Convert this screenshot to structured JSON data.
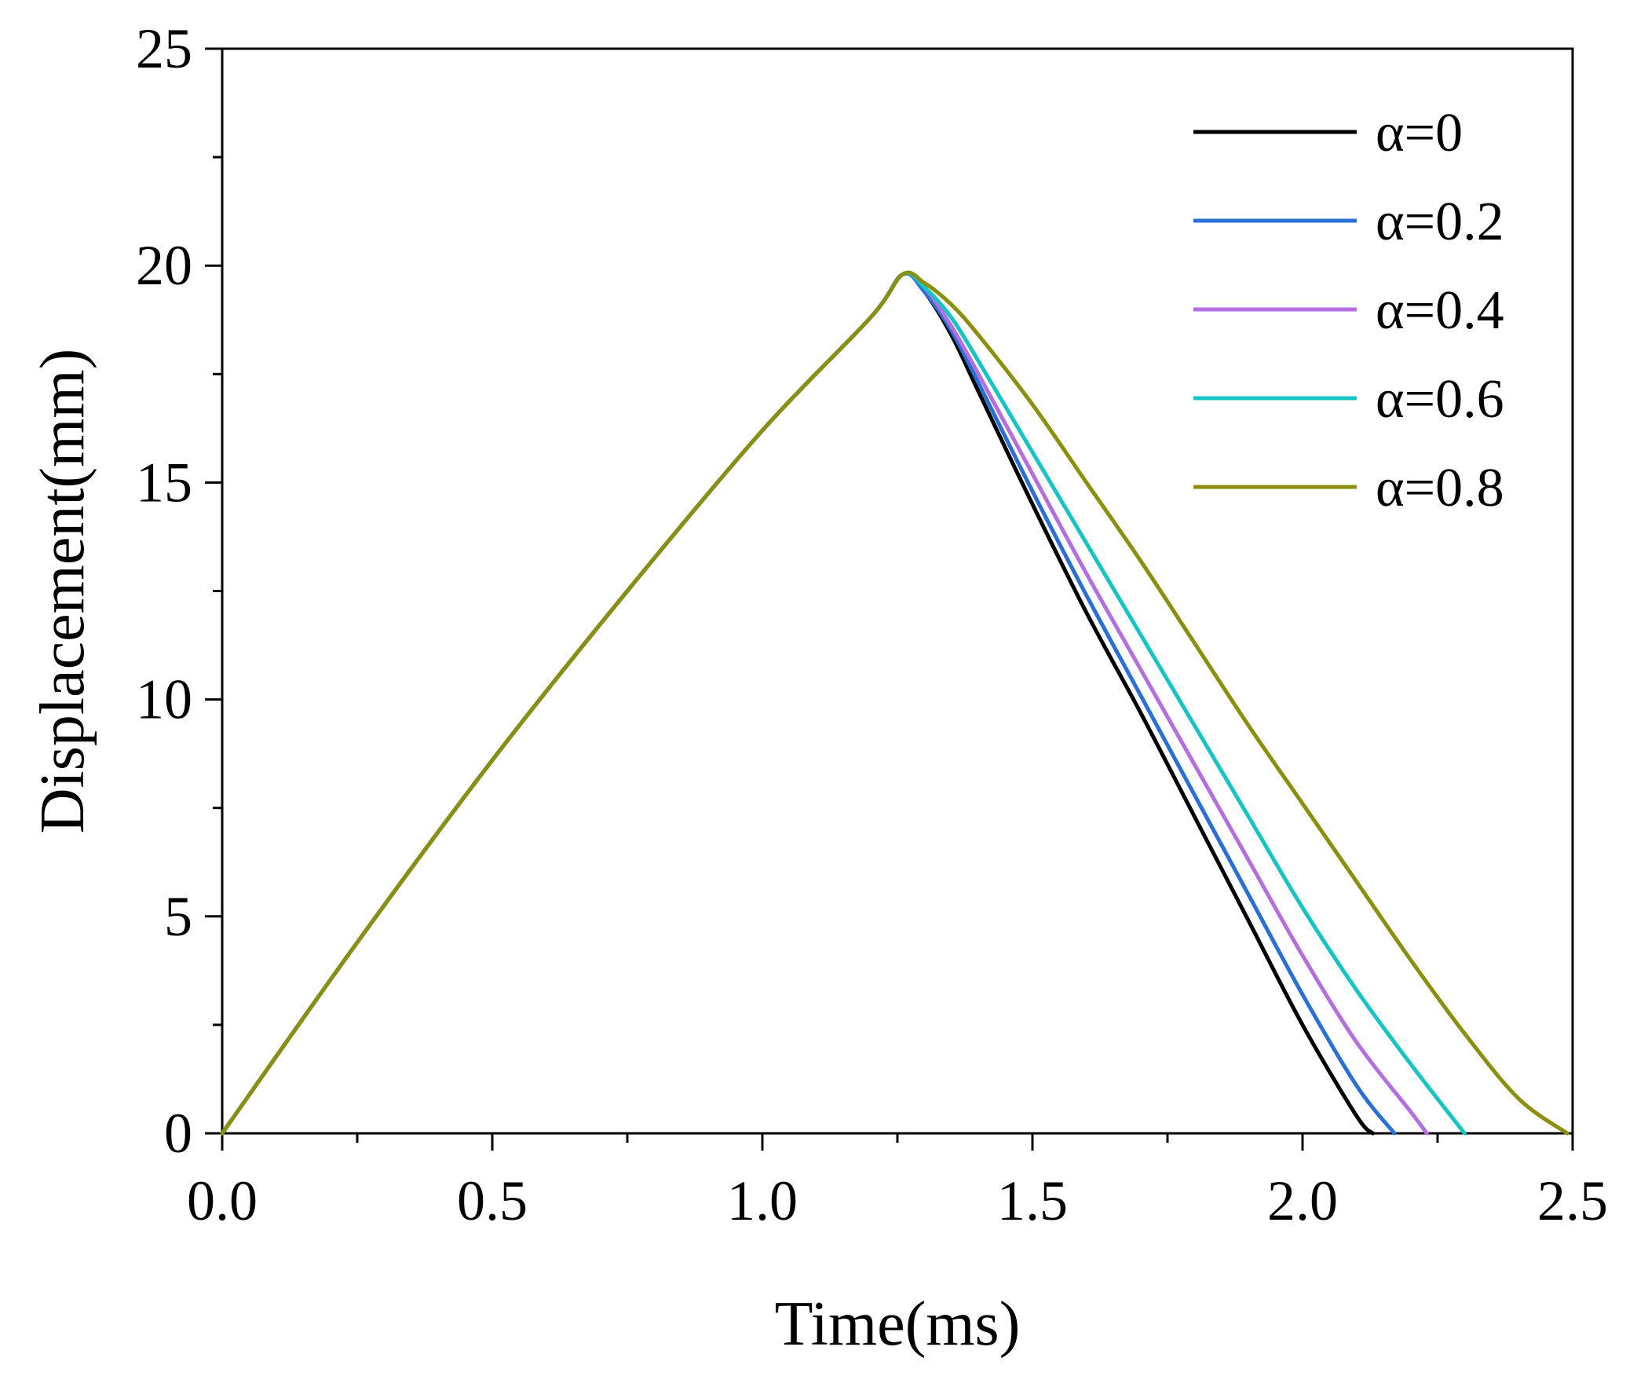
{
  "chart_data": {
    "type": "line",
    "title": "",
    "xlabel": "Time(ms)",
    "ylabel": "Displacement(mm)",
    "xlim": [
      0.0,
      2.5
    ],
    "ylim": [
      0,
      25
    ],
    "xticks": [
      "0.0",
      "0.5",
      "1.0",
      "1.5",
      "2.0",
      "2.5"
    ],
    "yticks": [
      "0",
      "5",
      "10",
      "15",
      "20",
      "25"
    ],
    "grid": false,
    "legend_position": "top-right",
    "series": [
      {
        "name": "α=0",
        "color": "#000000",
        "x": [
          0,
          0.25,
          0.5,
          0.75,
          1.0,
          1.2,
          1.26,
          1.3,
          1.35,
          1.4,
          1.5,
          1.6,
          1.7,
          1.8,
          1.9,
          2.0,
          2.1,
          2.13
        ],
        "y": [
          0,
          4.4,
          8.6,
          12.5,
          16.2,
          18.8,
          19.8,
          19.4,
          18.4,
          17.1,
          14.5,
          12.0,
          9.7,
          7.3,
          4.9,
          2.5,
          0.4,
          0
        ]
      },
      {
        "name": "α=0.2",
        "color": "#2a6fd6",
        "x": [
          0,
          0.25,
          0.5,
          0.75,
          1.0,
          1.2,
          1.26,
          1.3,
          1.35,
          1.4,
          1.5,
          1.6,
          1.7,
          1.8,
          1.9,
          2.0,
          2.1,
          2.17
        ],
        "y": [
          0,
          4.4,
          8.6,
          12.5,
          16.2,
          18.8,
          19.8,
          19.4,
          18.5,
          17.3,
          14.8,
          12.4,
          10.1,
          7.8,
          5.5,
          3.2,
          1.1,
          0
        ]
      },
      {
        "name": "α=0.4",
        "color": "#b46ee0",
        "x": [
          0,
          0.25,
          0.5,
          0.75,
          1.0,
          1.2,
          1.26,
          1.3,
          1.35,
          1.4,
          1.5,
          1.6,
          1.7,
          1.8,
          1.9,
          2.0,
          2.1,
          2.2,
          2.23
        ],
        "y": [
          0,
          4.4,
          8.6,
          12.5,
          16.2,
          18.8,
          19.8,
          19.5,
          18.6,
          17.5,
          15.2,
          12.9,
          10.7,
          8.5,
          6.3,
          4.1,
          2.1,
          0.5,
          0
        ]
      },
      {
        "name": "α=0.6",
        "color": "#17c4c4",
        "x": [
          0,
          0.25,
          0.5,
          0.75,
          1.0,
          1.2,
          1.26,
          1.3,
          1.35,
          1.4,
          1.5,
          1.6,
          1.7,
          1.8,
          1.9,
          2.0,
          2.1,
          2.2,
          2.3
        ],
        "y": [
          0,
          4.4,
          8.6,
          12.5,
          16.2,
          18.8,
          19.8,
          19.5,
          18.8,
          17.8,
          15.7,
          13.6,
          11.5,
          9.4,
          7.3,
          5.2,
          3.3,
          1.6,
          0
        ]
      },
      {
        "name": "α=0.8",
        "color": "#8a8f0e",
        "x": [
          0,
          0.25,
          0.5,
          0.75,
          1.0,
          1.2,
          1.26,
          1.3,
          1.35,
          1.4,
          1.5,
          1.6,
          1.7,
          1.8,
          1.9,
          2.0,
          2.1,
          2.2,
          2.3,
          2.4,
          2.49
        ],
        "y": [
          0,
          4.4,
          8.6,
          12.5,
          16.2,
          18.8,
          19.8,
          19.6,
          19.1,
          18.4,
          16.8,
          15.0,
          13.2,
          11.3,
          9.4,
          7.6,
          5.8,
          4.0,
          2.3,
          0.8,
          0
        ]
      }
    ]
  }
}
